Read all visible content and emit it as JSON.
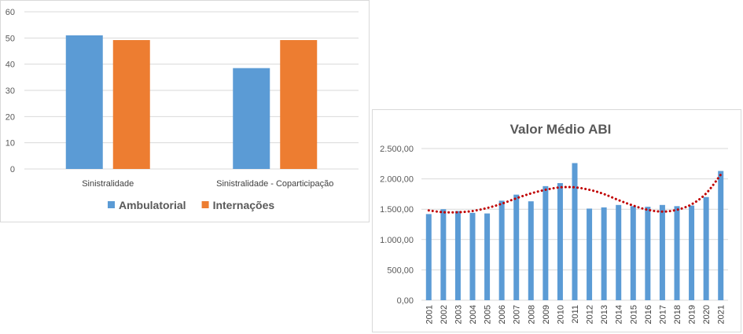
{
  "chart_data": [
    {
      "type": "bar",
      "title": "",
      "xlabel": "",
      "ylabel": "",
      "categories": [
        "Sinistralidade",
        "Sinistralidade - Coparticipação"
      ],
      "series": [
        {
          "name": "Ambulatorial",
          "values": [
            51,
            38.5
          ],
          "color": "#5b9bd5"
        },
        {
          "name": "Internações",
          "values": [
            49.2,
            49.2
          ],
          "color": "#ed7d31"
        }
      ],
      "ylim": [
        0,
        60
      ],
      "yticks": [
        "0",
        "10",
        "20",
        "30",
        "40",
        "50",
        "60"
      ],
      "grid": true,
      "legend_position": "bottom"
    },
    {
      "type": "bar",
      "title": "Valor Médio ABI",
      "xlabel": "",
      "ylabel": "",
      "categories": [
        "2001",
        "2002",
        "2003",
        "2004",
        "2005",
        "2006",
        "2007",
        "2008",
        "2009",
        "2010",
        "2011",
        "2012",
        "2013",
        "2014",
        "2015",
        "2016",
        "2017",
        "2018",
        "2019",
        "2020",
        "2021"
      ],
      "series": [
        {
          "values": [
            1420,
            1500,
            1470,
            1440,
            1430,
            1640,
            1740,
            1630,
            1880,
            1930,
            2260,
            1510,
            1530,
            1570,
            1550,
            1540,
            1570,
            1550,
            1560,
            1700,
            2130
          ],
          "color": "#5b9bd5"
        }
      ],
      "trendline": {
        "type": "polynomial",
        "color": "#c00000",
        "style": "dotted",
        "values": [
          1480,
          1450,
          1450,
          1470,
          1520,
          1590,
          1680,
          1760,
          1820,
          1860,
          1860,
          1820,
          1750,
          1650,
          1560,
          1490,
          1460,
          1490,
          1580,
          1760,
          2070
        ]
      },
      "ylim": [
        0,
        2500
      ],
      "yticks": [
        "0,00",
        "500,00",
        "1.000,00",
        "1.500,00",
        "2.000,00",
        "2.500,00"
      ],
      "grid": true,
      "legend_position": "none"
    }
  ]
}
